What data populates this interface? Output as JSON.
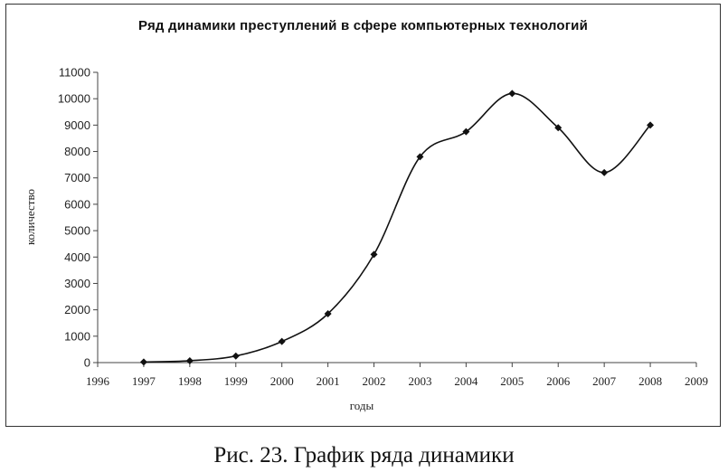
{
  "chart_data": {
    "type": "line",
    "title": "Ряд динамики преступлений в сфере компьютерных технологий",
    "xlabel": "годы",
    "ylabel": "количество",
    "xlim": [
      1996,
      2009
    ],
    "ylim": [
      0,
      11000
    ],
    "x_ticks": [
      1996,
      1997,
      1998,
      1999,
      2000,
      2001,
      2002,
      2003,
      2004,
      2005,
      2006,
      2007,
      2008,
      2009
    ],
    "y_ticks": [
      0,
      1000,
      2000,
      3000,
      4000,
      5000,
      6000,
      7000,
      8000,
      9000,
      10000,
      11000
    ],
    "grid": false,
    "smooth": true,
    "marker": "diamond",
    "line_color": "#111111",
    "series": [
      {
        "x": [
          1997,
          1998,
          1999,
          2000,
          2001,
          2002,
          2003,
          2004,
          2005,
          2006,
          2007,
          2008
        ],
        "y": [
          20,
          70,
          250,
          800,
          1850,
          4100,
          7800,
          8750,
          10200,
          8900,
          7200,
          9000
        ]
      }
    ]
  },
  "caption": "Рис. 23. График ряда динамики"
}
